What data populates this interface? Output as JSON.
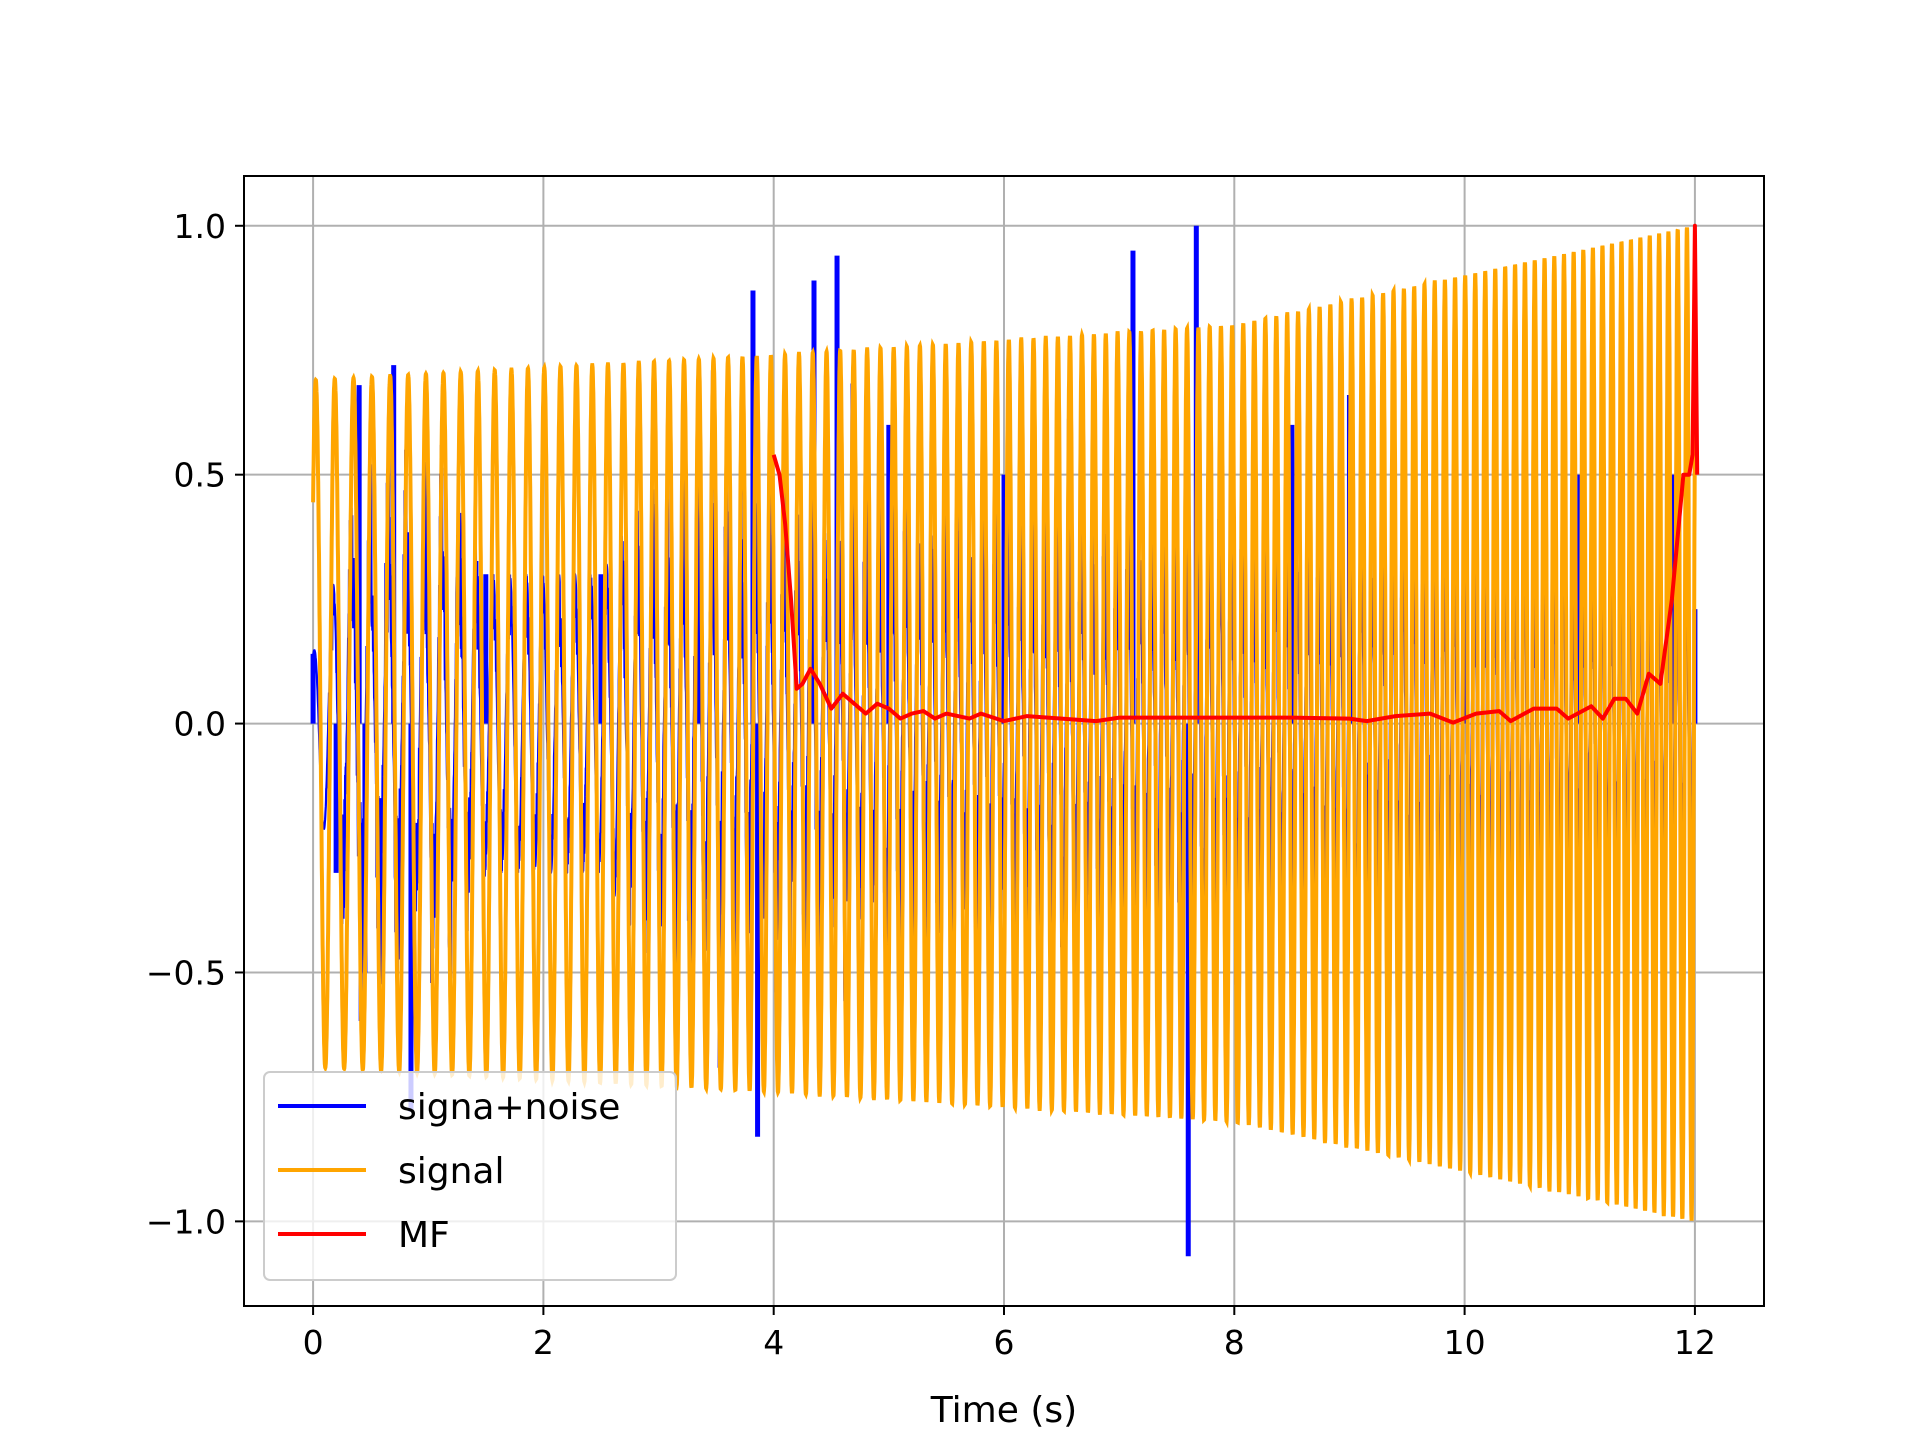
{
  "chart_data": {
    "type": "line",
    "title": "",
    "xlabel": "Time (s)",
    "ylabel": "",
    "xlim": [
      -0.6,
      12.6
    ],
    "ylim": [
      -1.17,
      1.1
    ],
    "xticks": [
      0,
      2,
      4,
      6,
      8,
      10,
      12
    ],
    "xtick_labels": [
      "0",
      "2",
      "4",
      "6",
      "8",
      "10",
      "12"
    ],
    "yticks": [
      -1.0,
      -0.5,
      0.0,
      0.5,
      1.0
    ],
    "ytick_labels": [
      "−1.0",
      "−0.5",
      "0.0",
      "0.5",
      "1.0"
    ],
    "grid": true,
    "legend_position": "lower-left",
    "series": [
      {
        "name": "signa+noise",
        "color": "#0000ff",
        "description_points": {
          "x": [
            0.0,
            0.2,
            0.4,
            0.45,
            0.7,
            0.85,
            1.5,
            2.5,
            3.35,
            3.82,
            3.86,
            4.35,
            4.55,
            5.0,
            6.0,
            7.12,
            7.6,
            7.67,
            8.5,
            9.0,
            10.0,
            11.0,
            11.8,
            12.0
          ],
          "y": [
            0.14,
            -0.3,
            0.68,
            -0.5,
            0.72,
            -0.78,
            0.3,
            0.3,
            0.66,
            0.87,
            -0.83,
            0.89,
            0.94,
            0.6,
            0.5,
            0.95,
            -1.07,
            1.0,
            0.6,
            0.66,
            0.5,
            0.5,
            0.5,
            0.23
          ]
        }
      },
      {
        "name": "signal",
        "color": "#ffa500",
        "amplitude_points": {
          "t": [
            0,
            4,
            8,
            12
          ],
          "a": [
            0.69,
            0.74,
            0.8,
            1.0
          ]
        }
      },
      {
        "name": "MF",
        "color": "#ff0000",
        "x": [
          4.0,
          4.05,
          4.1,
          4.15,
          4.2,
          4.25,
          4.32,
          4.4,
          4.5,
          4.6,
          4.7,
          4.8,
          4.9,
          5.0,
          5.1,
          5.2,
          5.3,
          5.4,
          5.5,
          5.6,
          5.7,
          5.8,
          6.0,
          6.2,
          6.5,
          6.8,
          7.0,
          7.5,
          8.0,
          8.5,
          9.0,
          9.15,
          9.4,
          9.7,
          9.9,
          10.1,
          10.3,
          10.4,
          10.6,
          10.8,
          10.9,
          11.1,
          11.2,
          11.3,
          11.4,
          11.5,
          11.6,
          11.7,
          11.8,
          11.9,
          11.95,
          11.98,
          12.0,
          12.02
        ],
        "y": [
          0.54,
          0.5,
          0.4,
          0.25,
          0.07,
          0.08,
          0.11,
          0.08,
          0.03,
          0.06,
          0.04,
          0.02,
          0.04,
          0.03,
          0.01,
          0.02,
          0.025,
          0.01,
          0.02,
          0.015,
          0.01,
          0.02,
          0.005,
          0.015,
          0.01,
          0.005,
          0.012,
          0.012,
          0.012,
          0.012,
          0.01,
          0.005,
          0.015,
          0.02,
          0.002,
          0.02,
          0.025,
          0.005,
          0.03,
          0.03,
          0.01,
          0.035,
          0.01,
          0.05,
          0.05,
          0.02,
          0.1,
          0.08,
          0.25,
          0.5,
          0.5,
          0.54,
          1.0,
          0.5
        ]
      }
    ]
  }
}
